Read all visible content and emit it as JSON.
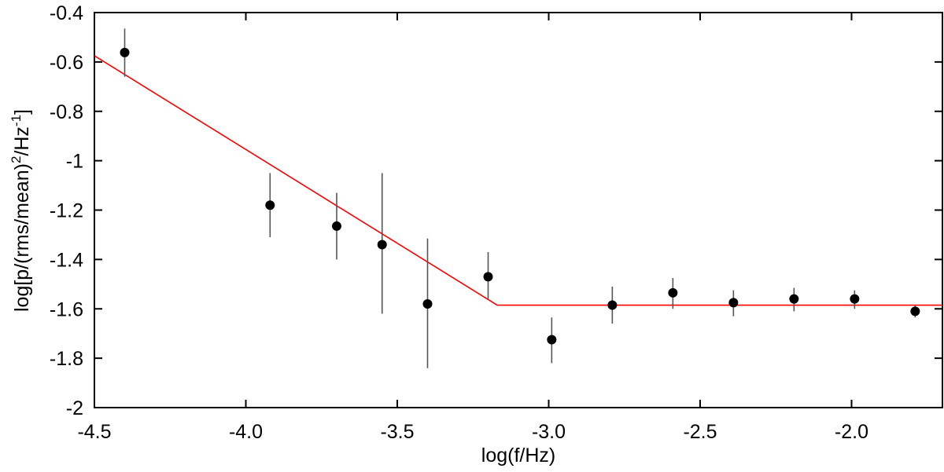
{
  "chart_data": {
    "type": "scatter",
    "title": "",
    "xlabel": "log(f/Hz)",
    "ylabel_main": "log[p/(rms/mean)",
    "ylabel_sup1": "2",
    "ylabel_mid": "/Hz",
    "ylabel_sup2": "-1",
    "ylabel_end": "]",
    "xlim": [
      -4.5,
      -1.7
    ],
    "ylim": [
      -2.0,
      -0.4
    ],
    "xticks": [
      -4.5,
      -4.0,
      -3.5,
      -3.0,
      -2.5,
      -2.0
    ],
    "xtick_labels": [
      "-4.5",
      "-4.0",
      "-3.5",
      "-3.0",
      "-2.5",
      "-2.0"
    ],
    "yticks": [
      -2.0,
      -1.8,
      -1.6,
      -1.4,
      -1.2,
      -1.0,
      -0.8,
      -0.6,
      -0.4
    ],
    "ytick_labels": [
      "-2",
      "-1.8",
      "-1.6",
      "-1.4",
      "-1.2",
      "-1",
      "-0.8",
      "-0.6",
      "-0.4"
    ],
    "grid": false,
    "series": [
      {
        "type": "scatter",
        "color": "#000000",
        "points": [
          {
            "x": -4.4,
            "y": -0.562,
            "ylow": -0.66,
            "yhigh": -0.465
          },
          {
            "x": -3.92,
            "y": -1.18,
            "ylow": -1.31,
            "yhigh": -1.05
          },
          {
            "x": -3.7,
            "y": -1.265,
            "ylow": -1.4,
            "yhigh": -1.13
          },
          {
            "x": -3.55,
            "y": -1.34,
            "ylow": -1.62,
            "yhigh": -1.05
          },
          {
            "x": -3.4,
            "y": -1.58,
            "ylow": -1.84,
            "yhigh": -1.315
          },
          {
            "x": -3.2,
            "y": -1.47,
            "ylow": -1.56,
            "yhigh": -1.37
          },
          {
            "x": -2.99,
            "y": -1.725,
            "ylow": -1.82,
            "yhigh": -1.635
          },
          {
            "x": -2.79,
            "y": -1.585,
            "ylow": -1.66,
            "yhigh": -1.51
          },
          {
            "x": -2.59,
            "y": -1.535,
            "ylow": -1.6,
            "yhigh": -1.475
          },
          {
            "x": -2.39,
            "y": -1.575,
            "ylow": -1.63,
            "yhigh": -1.525
          },
          {
            "x": -2.19,
            "y": -1.56,
            "ylow": -1.61,
            "yhigh": -1.515
          },
          {
            "x": -1.99,
            "y": -1.56,
            "ylow": -1.6,
            "yhigh": -1.525
          },
          {
            "x": -1.79,
            "y": -1.61,
            "ylow": -1.635,
            "yhigh": -1.585
          }
        ]
      },
      {
        "type": "line",
        "color": "#ff0000",
        "points": [
          {
            "x": -4.5,
            "y": -0.575
          },
          {
            "x": -3.17,
            "y": -1.585
          },
          {
            "x": -1.7,
            "y": -1.585
          }
        ]
      }
    ]
  }
}
